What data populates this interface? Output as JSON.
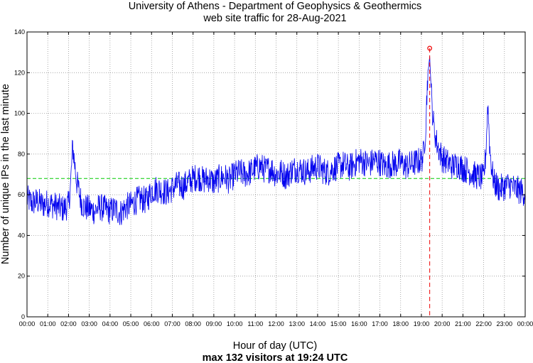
{
  "chart_data": {
    "type": "line",
    "title": "University of Athens - Department of Geophysics & Geothermics",
    "subtitle": "web site traffic for 28-Aug-2021",
    "xlabel": "Hour of day (UTC)",
    "summary": "max 132 visitors at 19:24 UTC",
    "ylabel": "Number of unique IPs in the last minute",
    "xlim": [
      0,
      24
    ],
    "ylim": [
      0,
      140
    ],
    "yticks": [
      0,
      20,
      40,
      60,
      80,
      100,
      120,
      140
    ],
    "xtick_labels": [
      "00:00",
      "01:00",
      "02:00",
      "03:00",
      "04:00",
      "05:00",
      "06:00",
      "07:00",
      "08:00",
      "09:00",
      "10:00",
      "11:00",
      "12:00",
      "13:00",
      "14:00",
      "15:00",
      "16:00",
      "17:00",
      "18:00",
      "19:00",
      "20:00",
      "21:00",
      "22:00",
      "23:00",
      "00:00"
    ],
    "grid": true,
    "average_line": 68,
    "max": {
      "hour": 19.4,
      "value": 132
    },
    "colors": {
      "series": "#0000ee",
      "average": "#00cc00",
      "max_marker": "#ee0000"
    },
    "series": [
      {
        "x": [
          0,
          0.25,
          0.5,
          0.75,
          1,
          1.25,
          1.5,
          1.75,
          2,
          2.1,
          2.2,
          2.3,
          2.4,
          2.5,
          2.6,
          2.75,
          3,
          3.25,
          3.5,
          3.75,
          4,
          4.25,
          4.5,
          4.75,
          5,
          5.25,
          5.5,
          5.75,
          6,
          6.25,
          6.5,
          6.75,
          7,
          7.25,
          7.5,
          7.75,
          8,
          8.25,
          8.5,
          8.75,
          9,
          9.25,
          9.5,
          9.75,
          10,
          10.25,
          10.5,
          10.75,
          11,
          11.25,
          11.5,
          11.75,
          12,
          12.25,
          12.5,
          12.75,
          13,
          13.25,
          13.5,
          13.75,
          14,
          14.25,
          14.5,
          14.75,
          15,
          15.25,
          15.5,
          15.75,
          16,
          16.25,
          16.5,
          16.75,
          17,
          17.25,
          17.5,
          17.75,
          18,
          18.25,
          18.5,
          18.75,
          19,
          19.1,
          19.2,
          19.3,
          19.4,
          19.5,
          19.6,
          19.75,
          20,
          20.25,
          20.5,
          20.75,
          21,
          21.25,
          21.5,
          21.75,
          22,
          22.1,
          22.2,
          22.3,
          22.4,
          22.5,
          22.75,
          23,
          23.25,
          23.5,
          23.75,
          24
        ],
        "y": [
          58,
          56,
          57,
          55,
          56,
          55,
          54,
          53,
          55,
          65,
          84,
          75,
          66,
          62,
          57,
          54,
          53,
          52,
          54,
          53,
          52,
          53,
          51,
          54,
          55,
          57,
          58,
          57,
          62,
          63,
          62,
          61,
          63,
          65,
          64,
          66,
          68,
          69,
          67,
          68,
          66,
          68,
          69,
          67,
          70,
          71,
          70,
          71,
          73,
          74,
          72,
          73,
          70,
          71,
          69,
          72,
          73,
          72,
          71,
          73,
          74,
          72,
          71,
          73,
          74,
          75,
          73,
          75,
          77,
          76,
          75,
          77,
          76,
          74,
          75,
          75,
          76,
          74,
          75,
          76,
          77,
          80,
          92,
          118,
          128,
          105,
          93,
          85,
          78,
          76,
          74,
          75,
          73,
          72,
          70,
          69,
          68,
          80,
          105,
          82,
          72,
          66,
          63,
          64,
          65,
          63,
          62,
          61
        ]
      }
    ]
  }
}
